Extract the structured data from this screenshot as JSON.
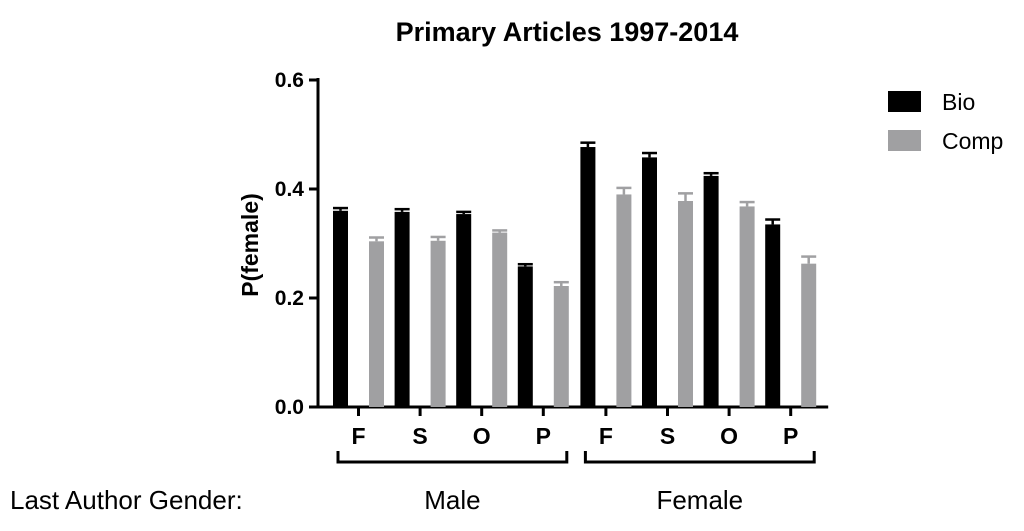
{
  "chart_data": {
    "type": "bar",
    "title": "Primary Articles 1997-2014",
    "xlabel": "",
    "ylabel": "P(female)",
    "ylim": [
      0,
      0.6
    ],
    "yticks": [
      "0.0",
      "0.2",
      "0.4",
      "0.6"
    ],
    "categories": [
      "F",
      "S",
      "O",
      "P",
      "F",
      "S",
      "O",
      "P"
    ],
    "groups": [
      {
        "label": "Male",
        "start": 0,
        "end": 3
      },
      {
        "label": "Female",
        "start": 4,
        "end": 7
      }
    ],
    "group_axis_label": "Last Author Gender:",
    "series": [
      {
        "name": "Bio",
        "color": "#000000",
        "values": [
          0.36,
          0.358,
          0.354,
          0.258,
          0.477,
          0.458,
          0.424,
          0.335
        ],
        "errors": [
          0.005,
          0.005,
          0.004,
          0.004,
          0.008,
          0.008,
          0.005,
          0.009
        ]
      },
      {
        "name": "Comp",
        "color": "#a0a0a2",
        "values": [
          0.304,
          0.305,
          0.32,
          0.222,
          0.39,
          0.378,
          0.368,
          0.263
        ],
        "errors": [
          0.007,
          0.007,
          0.004,
          0.007,
          0.012,
          0.014,
          0.008,
          0.013
        ]
      }
    ],
    "legend_position": "top-right",
    "grid": false
  }
}
